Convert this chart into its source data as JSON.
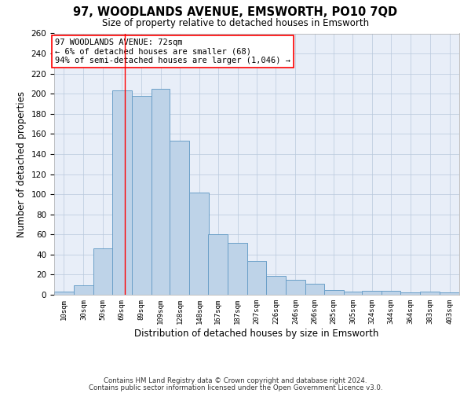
{
  "title": "97, WOODLANDS AVENUE, EMSWORTH, PO10 7QD",
  "subtitle": "Size of property relative to detached houses in Emsworth",
  "xlabel": "Distribution of detached houses by size in Emsworth",
  "ylabel": "Number of detached properties",
  "bar_labels": [
    "10sqm",
    "30sqm",
    "50sqm",
    "69sqm",
    "89sqm",
    "109sqm",
    "128sqm",
    "148sqm",
    "167sqm",
    "187sqm",
    "207sqm",
    "226sqm",
    "246sqm",
    "266sqm",
    "285sqm",
    "305sqm",
    "324sqm",
    "344sqm",
    "364sqm",
    "383sqm",
    "403sqm"
  ],
  "bar_values": [
    3,
    9,
    46,
    203,
    198,
    205,
    153,
    102,
    60,
    52,
    34,
    19,
    15,
    11,
    5,
    3,
    4,
    4,
    2,
    3,
    2
  ],
  "bar_left_edges": [
    0,
    20,
    40,
    59,
    79,
    99,
    118,
    138,
    157,
    177,
    197,
    216,
    236,
    256,
    275,
    295,
    314,
    334,
    353,
    373,
    393
  ],
  "bar_widths": [
    20,
    20,
    19,
    20,
    20,
    19,
    20,
    20,
    20,
    20,
    19,
    20,
    20,
    19,
    20,
    19,
    20,
    19,
    20,
    20,
    20
  ],
  "bar_color": "#bed3e8",
  "bar_edge_color": "#6a9fc8",
  "red_line_x": 72,
  "ylim": [
    0,
    260
  ],
  "yticks": [
    0,
    20,
    40,
    60,
    80,
    100,
    120,
    140,
    160,
    180,
    200,
    220,
    240,
    260
  ],
  "annotation_title": "97 WOODLANDS AVENUE: 72sqm",
  "annotation_line1": "← 6% of detached houses are smaller (68)",
  "annotation_line2": "94% of semi-detached houses are larger (1,046) →",
  "footer1": "Contains HM Land Registry data © Crown copyright and database right 2024.",
  "footer2": "Contains public sector information licensed under the Open Government Licence v3.0.",
  "fig_bg_color": "#ffffff",
  "plot_bg_color": "#e8eef8"
}
